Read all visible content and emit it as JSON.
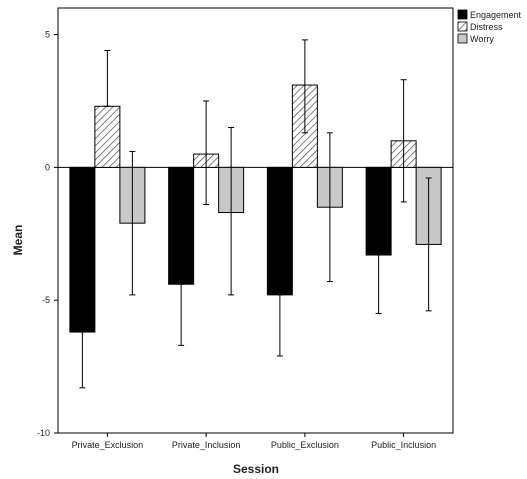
{
  "chart_data": {
    "type": "bar",
    "title": "",
    "xlabel": "Session",
    "ylabel": "Mean",
    "categories": [
      "Private_Exclusion",
      "Private_Inclusion",
      "Public_Exclusion",
      "Public_Inclusion"
    ],
    "ylim": [
      -10,
      6
    ],
    "yticks": [
      -10,
      -5,
      0,
      5
    ],
    "grid": false,
    "legend_position": "top-right",
    "error_bars": true,
    "series": [
      {
        "name": "Engagement",
        "pattern": "solid",
        "color": "#000000",
        "values": [
          -6.2,
          -4.4,
          -4.8,
          -3.3
        ],
        "error_low": [
          -8.3,
          -6.7,
          -7.1,
          -5.5
        ],
        "error_high": [
          -6.2,
          -4.4,
          -4.8,
          -3.3
        ]
      },
      {
        "name": "Distress",
        "pattern": "hatch",
        "color": "#bdbdbd",
        "values": [
          2.3,
          0.5,
          3.1,
          1.0
        ],
        "error_low": [
          2.3,
          -1.4,
          1.3,
          -1.3
        ],
        "error_high": [
          4.4,
          2.5,
          4.8,
          3.3
        ]
      },
      {
        "name": "Worry",
        "pattern": "solid",
        "color": "#c8c8c8",
        "values": [
          -2.1,
          -1.7,
          -1.5,
          -2.9
        ],
        "error_low": [
          -4.8,
          -4.8,
          -4.3,
          -5.4
        ],
        "error_high": [
          0.6,
          1.5,
          1.3,
          -0.4
        ]
      }
    ]
  }
}
